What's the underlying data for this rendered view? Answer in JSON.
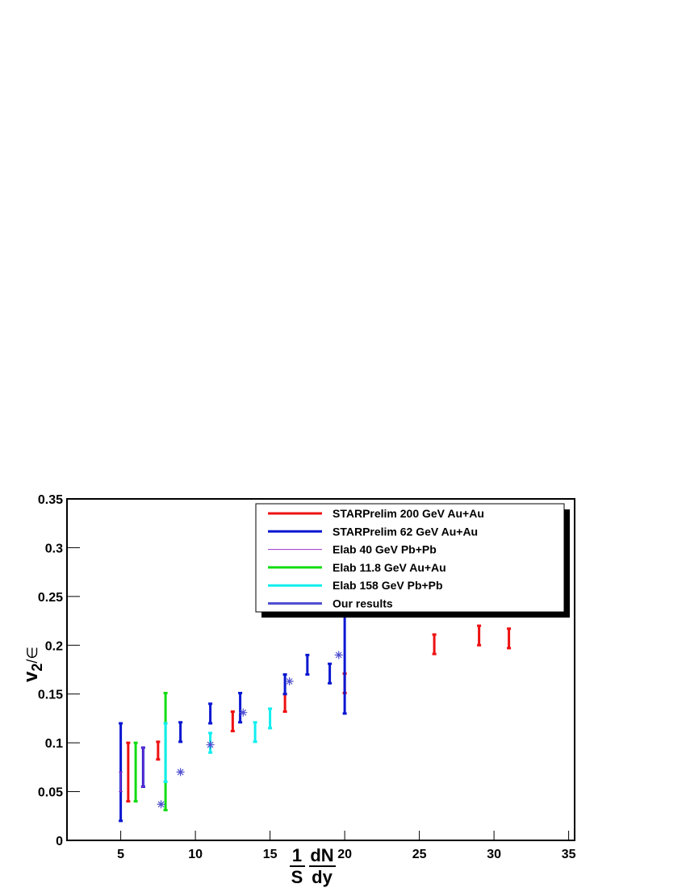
{
  "chart_data": {
    "type": "errorbar",
    "xlabel": [
      "1",
      "S",
      "dN",
      "dy"
    ],
    "ylabel": [
      "v",
      "2",
      "/∈"
    ],
    "xlim": [
      1.4,
      35.4
    ],
    "ylim": [
      0,
      0.35
    ],
    "xticks": [
      5,
      10,
      15,
      20,
      25,
      30,
      35
    ],
    "yticks": [
      0,
      0.05,
      0.1,
      0.15,
      0.2,
      0.25,
      0.3,
      0.35
    ],
    "series": [
      {
        "name": "STARPrelim 200 GeV Au+Au",
        "color": "#ee1111",
        "width": 3,
        "x": [
          5.5,
          7.5,
          12.5,
          16,
          20,
          26,
          29,
          31
        ],
        "values": [
          0.07,
          0.092,
          0.122,
          0.141,
          0.161,
          0.201,
          0.21,
          0.207
        ],
        "errors": [
          0.03,
          0.009,
          0.01,
          0.009,
          0.01,
          0.01,
          0.01,
          0.01
        ]
      },
      {
        "name": "STARPrelim 62 GeV Au+Au",
        "color": "#0a17d0",
        "width": 3,
        "x": [
          5,
          6.5,
          9,
          11,
          13,
          16,
          17.5,
          19,
          20
        ],
        "values": [
          0.07,
          0.075,
          0.111,
          0.13,
          0.136,
          0.16,
          0.18,
          0.171,
          0.18
        ],
        "errors": [
          0.05,
          0.02,
          0.01,
          0.01,
          0.015,
          0.01,
          0.01,
          0.01,
          0.05
        ]
      },
      {
        "name": "Elab 40 GeV Pb+Pb",
        "color": "#9933cc",
        "width": 1,
        "x": [
          5,
          6.5
        ],
        "values": [
          0.06,
          0.075
        ],
        "errors": [
          0.01,
          0.02
        ]
      },
      {
        "name": "Elab 11.8 GeV Au+Au",
        "color": "#11dd11",
        "width": 3,
        "x": [
          6,
          8
        ],
        "values": [
          0.07,
          0.091
        ],
        "errors": [
          0.03,
          0.06
        ]
      },
      {
        "name": "Elab 158 GeV Pb+Pb",
        "color": "#11eeee",
        "width": 3,
        "x": [
          8,
          11,
          14,
          15
        ],
        "values": [
          0.09,
          0.1,
          0.111,
          0.125
        ],
        "errors": [
          0.03,
          0.01,
          0.01,
          0.01
        ]
      },
      {
        "name": "Our results",
        "color": "#5050d0",
        "width": 3,
        "marker": "asterisk",
        "x": [
          7.7,
          9,
          11,
          13.2,
          16.3,
          19.6
        ],
        "values": [
          0.037,
          0.07,
          0.098,
          0.131,
          0.163,
          0.19
        ]
      }
    ],
    "legend": "top-right"
  }
}
